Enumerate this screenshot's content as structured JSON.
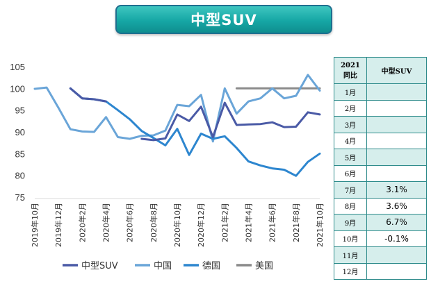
{
  "title": "中型SUV",
  "table": {
    "header_year": "2021",
    "header_label": "同比",
    "header_series": "中型SUV",
    "rows": [
      {
        "month": "1月",
        "value": ""
      },
      {
        "month": "2月",
        "value": ""
      },
      {
        "month": "3月",
        "value": ""
      },
      {
        "month": "4月",
        "value": ""
      },
      {
        "month": "5月",
        "value": ""
      },
      {
        "month": "6月",
        "value": ""
      },
      {
        "month": "7月",
        "value": "3.1%"
      },
      {
        "month": "8月",
        "value": "3.6%"
      },
      {
        "month": "9月",
        "value": "6.7%"
      },
      {
        "month": "10月",
        "value": "-0.1%"
      },
      {
        "month": "11月",
        "value": ""
      },
      {
        "month": "12月",
        "value": ""
      }
    ],
    "teal_fill": "#d6eeec",
    "border_color": "#2e8b8b"
  },
  "chart_data": {
    "type": "line",
    "x": [
      "2019年10月",
      "2019年11月",
      "2019年12月",
      "2020年1月",
      "2020年2月",
      "2020年3月",
      "2020年4月",
      "2020年5月",
      "2020年6月",
      "2020年7月",
      "2020年8月",
      "2020年9月",
      "2020年10月",
      "2020年11月",
      "2020年12月",
      "2021年1月",
      "2021年2月",
      "2021年3月",
      "2021年4月",
      "2021年5月",
      "2021年6月",
      "2021年7月",
      "2021年8月",
      "2021年9月",
      "2021年10月"
    ],
    "tick_labels": [
      "2019年10月",
      "2019年12月",
      "2020年2月",
      "2020年4月",
      "2020年6月",
      "2020年8月",
      "2020年10月",
      "2020年12月",
      "2021年2月",
      "2021年4月",
      "2021年6月",
      "2021年8月",
      "2021年10月"
    ],
    "ylim": [
      75,
      105
    ],
    "yticks": [
      75,
      80,
      85,
      90,
      95,
      100,
      105
    ],
    "grid": false,
    "legend_position": "bottom",
    "series": [
      {
        "name": "中型SUV",
        "color": "#4a5aa6",
        "values": [
          null,
          null,
          null,
          100,
          97.7,
          97.5,
          97.0,
          null,
          null,
          88.4,
          88.1,
          88.5,
          94.0,
          92.5,
          95.8,
          88.8,
          96.7,
          91.6,
          91.7,
          91.8,
          92.2,
          91.1,
          91.2,
          94.5,
          94.0
        ]
      },
      {
        "name": "中国",
        "color": "#6aa5d8",
        "values": [
          99.9,
          100.2,
          95.5,
          90.6,
          90.1,
          90.0,
          93.4,
          88.8,
          88.4,
          89.1,
          89.2,
          90.3,
          96.2,
          95.9,
          98.5,
          87.8,
          100.0,
          94.2,
          97.0,
          97.7,
          100.0,
          97.7,
          98.3,
          103.1,
          99.5
        ]
      },
      {
        "name": "德国",
        "color": "#2d86cf",
        "values": [
          null,
          null,
          null,
          100,
          97.7,
          97.5,
          97.0,
          95.0,
          92.9,
          90.2,
          88.6,
          86.9,
          90.7,
          84.7,
          89.6,
          88.4,
          89.0,
          86.3,
          83.2,
          82.3,
          81.6,
          81.3,
          79.9,
          83.1,
          85.0
        ]
      },
      {
        "name": "美国",
        "color": "#8a8a8a",
        "values": [
          null,
          null,
          null,
          null,
          null,
          null,
          null,
          null,
          null,
          null,
          null,
          null,
          null,
          null,
          null,
          null,
          null,
          100,
          100,
          100,
          100,
          100,
          100,
          100,
          100
        ]
      }
    ]
  }
}
